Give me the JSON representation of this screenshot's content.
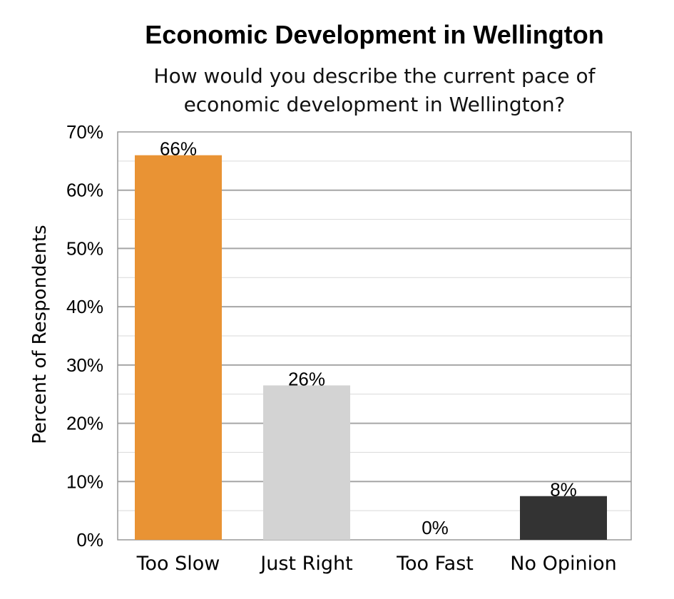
{
  "chart_data": {
    "type": "bar",
    "title": "Economic Development in Wellington",
    "subtitle": [
      "How would you describe the current pace of",
      "economic development in Wellington?"
    ],
    "ylabel": "Percent of Respondents",
    "xlabel": "",
    "categories": [
      "Too Slow",
      "Just Right",
      "Too Fast",
      "No Opinion"
    ],
    "values": [
      66,
      26.5,
      0,
      7.5
    ],
    "data_labels": [
      "66%",
      "26%",
      "0%",
      "8%"
    ],
    "colors": [
      "#E99334",
      "#D3D3D3",
      "#D3D3D3",
      "#333333"
    ],
    "ylim": [
      0,
      70
    ],
    "yticks": [
      0,
      10,
      20,
      30,
      40,
      50,
      60,
      70
    ],
    "ytick_labels": [
      "0%",
      "10%",
      "20%",
      "30%",
      "40%",
      "50%",
      "60%",
      "70%"
    ],
    "grid": true,
    "legend": "none"
  }
}
